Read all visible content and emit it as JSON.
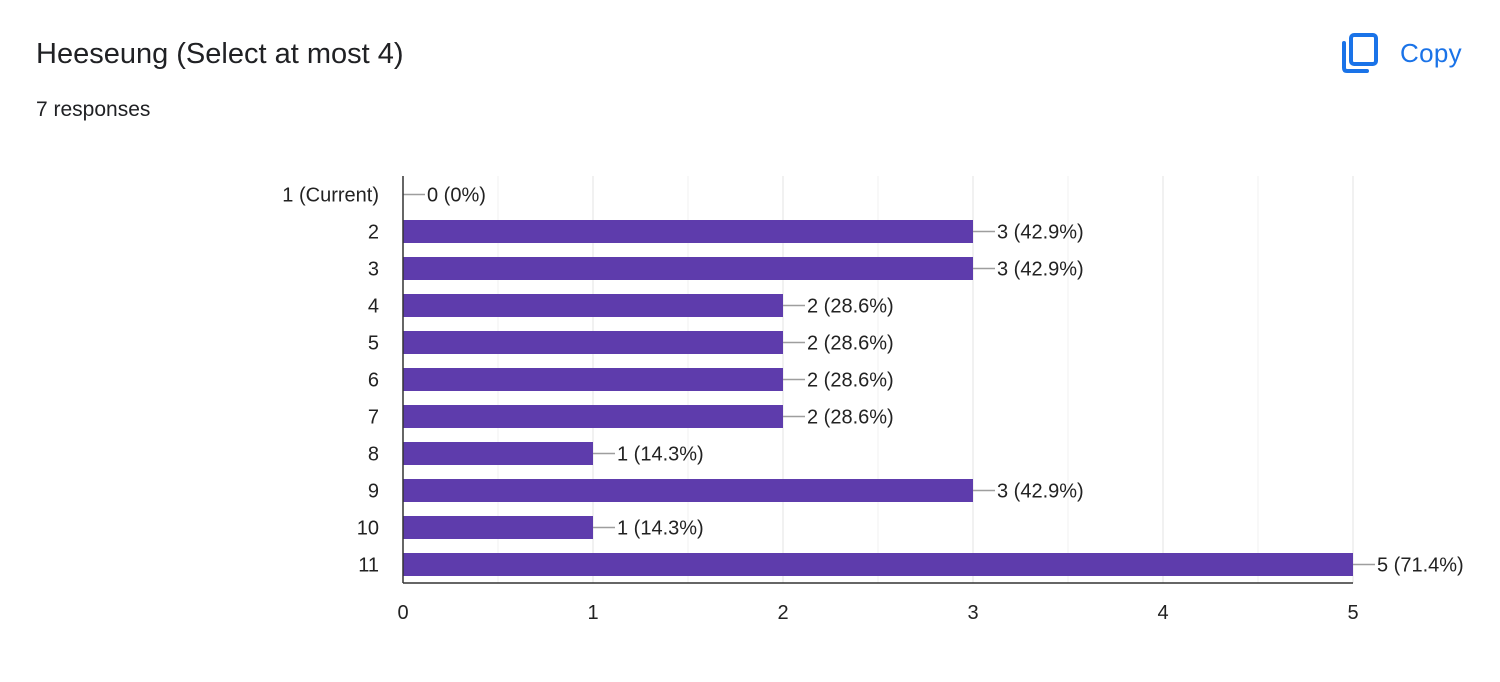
{
  "header": {
    "title": "Heeseung (Select at most 4)",
    "responses": "7 responses",
    "copy_label": "Copy",
    "copy_icon": "copy-icon",
    "accent_color": "#1a73e8"
  },
  "chart_data": {
    "type": "bar",
    "orientation": "horizontal",
    "categories": [
      "1 (Current)",
      "2",
      "3",
      "4",
      "5",
      "6",
      "7",
      "8",
      "9",
      "10",
      "11"
    ],
    "values": [
      0,
      3,
      3,
      2,
      2,
      2,
      2,
      1,
      3,
      1,
      5
    ],
    "data_labels": [
      "0 (0%)",
      "3 (42.9%)",
      "3 (42.9%)",
      "2 (28.6%)",
      "2 (28.6%)",
      "2 (28.6%)",
      "2 (28.6%)",
      "1 (14.3%)",
      "3 (42.9%)",
      "1 (14.3%)",
      "5 (71.4%)"
    ],
    "xlim": [
      0,
      5
    ],
    "xticks": [
      "0",
      "1",
      "2",
      "3",
      "4",
      "5"
    ],
    "grid": true,
    "bar_color": "#5e3cac"
  }
}
